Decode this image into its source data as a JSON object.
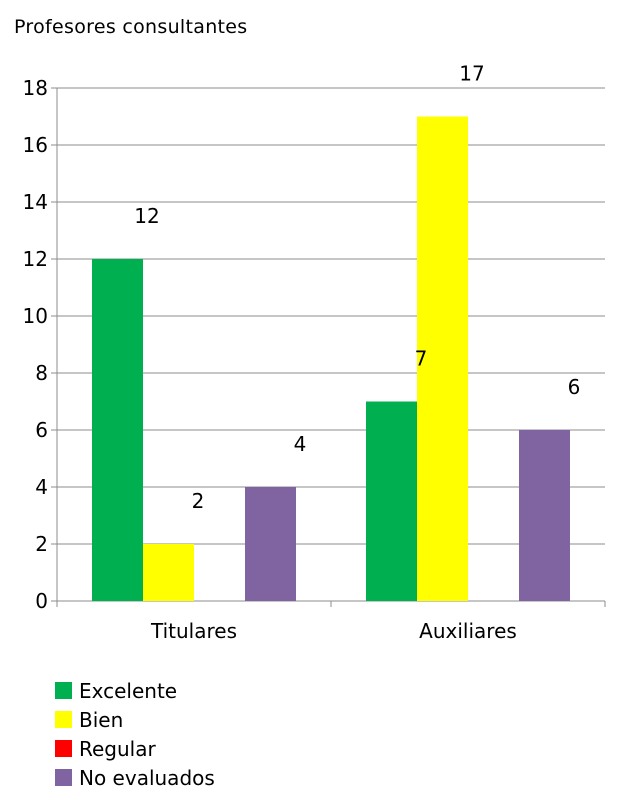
{
  "chart_data": {
    "type": "bar",
    "title": "Profesores consultantes",
    "categories": [
      "Titulares",
      "Auxiliares"
    ],
    "series": [
      {
        "name": "Excelente",
        "color": "#00b050",
        "values": [
          12,
          7
        ]
      },
      {
        "name": "Bien",
        "color": "#ffff00",
        "values": [
          2,
          17
        ]
      },
      {
        "name": "Regular",
        "color": "#ff0000",
        "values": [
          0,
          0
        ]
      },
      {
        "name": "No evaluados",
        "color": "#8064a2",
        "values": [
          4,
          6
        ]
      }
    ],
    "data_labels": [
      {
        "series": 0,
        "category": 0,
        "text": "12"
      },
      {
        "series": 1,
        "category": 0,
        "text": "2"
      },
      {
        "series": 3,
        "category": 0,
        "text": "4"
      },
      {
        "series": 0,
        "category": 1,
        "text": "7"
      },
      {
        "series": 1,
        "category": 1,
        "text": "17"
      },
      {
        "series": 3,
        "category": 1,
        "text": "6"
      }
    ],
    "ylim": [
      0,
      18
    ],
    "yticks": [
      0,
      2,
      4,
      6,
      8,
      10,
      12,
      14,
      16,
      18
    ],
    "grid": true,
    "legend_position": "bottom-left",
    "xlabel": "",
    "ylabel": ""
  }
}
